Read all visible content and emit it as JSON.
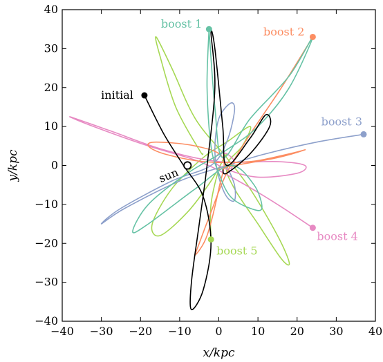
{
  "chart_data": {
    "type": "line",
    "xlabel": "x/kpc",
    "ylabel": "y/kpc",
    "xlim": [
      -40,
      40
    ],
    "ylim": [
      -40,
      40
    ],
    "xticks": [
      -40,
      -30,
      -20,
      -10,
      0,
      10,
      20,
      30,
      40
    ],
    "yticks": [
      -40,
      -30,
      -20,
      -10,
      0,
      10,
      20,
      30,
      40
    ],
    "xtick_labels": [
      "−40",
      "−30",
      "−20",
      "−10",
      "0",
      "10",
      "20",
      "30",
      "40"
    ],
    "ytick_labels": [
      "−40",
      "−30",
      "−20",
      "−10",
      "0",
      "10",
      "20",
      "30",
      "40"
    ],
    "grid": false,
    "series": [
      {
        "name": "initial",
        "color": "#000000",
        "marker": [
          -19,
          18
        ],
        "points": [
          [
            -19,
            18
          ],
          [
            -14,
            8
          ],
          [
            -9,
            0
          ],
          [
            -4,
            -8
          ],
          [
            -2,
            -20
          ],
          [
            -4,
            -32
          ],
          [
            -7,
            -37
          ],
          [
            -7,
            -30
          ],
          [
            -5,
            -15
          ],
          [
            -3,
            0
          ],
          [
            -1,
            20
          ],
          [
            -2,
            34
          ],
          [
            -1,
            30
          ],
          [
            1,
            10
          ],
          [
            2,
            0
          ],
          [
            8,
            7
          ],
          [
            12,
            13
          ],
          [
            13,
            10
          ],
          [
            8,
            3
          ],
          [
            2,
            -2
          ],
          [
            1,
            -1
          ]
        ]
      },
      {
        "name": "boost 1",
        "color": "#66c2a5",
        "marker": [
          -2.5,
          35
        ],
        "points": [
          [
            -2.5,
            35
          ],
          [
            -3,
            20
          ],
          [
            -2,
            5
          ],
          [
            0,
            -2
          ],
          [
            3,
            -8
          ],
          [
            8,
            -11
          ],
          [
            11,
            -11
          ],
          [
            9,
            -5
          ],
          [
            3,
            0
          ],
          [
            -6,
            -6
          ],
          [
            -18,
            -15
          ],
          [
            -22,
            -17
          ],
          [
            -18,
            -10
          ],
          [
            -8,
            -2
          ],
          [
            2,
            4
          ],
          [
            10,
            10
          ],
          [
            18,
            20
          ],
          [
            24,
            33
          ],
          [
            18,
            23
          ],
          [
            8,
            12
          ],
          [
            1,
            2
          ],
          [
            -1,
            15
          ],
          [
            -2.5,
            35
          ]
        ]
      },
      {
        "name": "boost 2",
        "color": "#fc8d62",
        "marker": [
          24,
          33
        ],
        "points": [
          [
            24,
            33
          ],
          [
            16,
            20
          ],
          [
            8,
            8
          ],
          [
            2,
            -2
          ],
          [
            -2,
            -12
          ],
          [
            -5,
            -20
          ],
          [
            -6,
            -23
          ],
          [
            -3,
            -18
          ],
          [
            0,
            -6
          ],
          [
            1,
            2
          ],
          [
            -6,
            5
          ],
          [
            -16,
            6
          ],
          [
            -18,
            5
          ],
          [
            -14,
            3
          ],
          [
            -4,
            1
          ],
          [
            8,
            1
          ],
          [
            18,
            3
          ],
          [
            22,
            4
          ],
          [
            15,
            2
          ],
          [
            4,
            0
          ],
          [
            0,
            -1
          ]
        ]
      },
      {
        "name": "boost 3",
        "color": "#8da0cb",
        "marker": [
          37,
          8
        ],
        "points": [
          [
            37,
            8
          ],
          [
            25,
            6
          ],
          [
            12,
            3
          ],
          [
            2,
            0
          ],
          [
            -10,
            -4
          ],
          [
            -24,
            -11
          ],
          [
            -30,
            -15
          ],
          [
            -25,
            -11
          ],
          [
            -12,
            -4
          ],
          [
            -2,
            0
          ],
          [
            2,
            6
          ],
          [
            4,
            14
          ],
          [
            3,
            16
          ],
          [
            0,
            12
          ],
          [
            -1,
            4
          ],
          [
            0,
            -3
          ],
          [
            2,
            -8
          ],
          [
            4,
            -9
          ],
          [
            4,
            -5
          ],
          [
            2,
            0
          ]
        ]
      },
      {
        "name": "boost 4",
        "color": "#e78ac3",
        "marker": [
          24,
          -16
        ],
        "points": [
          [
            24,
            -16
          ],
          [
            15,
            -10
          ],
          [
            5,
            -4
          ],
          [
            -5,
            1
          ],
          [
            -18,
            5
          ],
          [
            -32,
            10
          ],
          [
            -38,
            12.5
          ],
          [
            -28,
            9
          ],
          [
            -14,
            4
          ],
          [
            0,
            1
          ],
          [
            15,
            1
          ],
          [
            22,
            0
          ],
          [
            20,
            -2
          ],
          [
            10,
            -3
          ],
          [
            2,
            -1
          ],
          [
            -1,
            1
          ],
          [
            0,
            3
          ],
          [
            2,
            3
          ],
          [
            4,
            1
          ],
          [
            3,
            -1
          ]
        ]
      },
      {
        "name": "boost 5",
        "color": "#a6d854",
        "marker": [
          -2,
          -19
        ],
        "points": [
          [
            -2,
            -19
          ],
          [
            -2,
            -10
          ],
          [
            0,
            -1
          ],
          [
            2,
            3
          ],
          [
            -2,
            -4
          ],
          [
            -8,
            -12
          ],
          [
            -15,
            -18
          ],
          [
            -17,
            -15
          ],
          [
            -12,
            -6
          ],
          [
            -4,
            2
          ],
          [
            2,
            6
          ],
          [
            8,
            10
          ],
          [
            6,
            5
          ],
          [
            2,
            0
          ],
          [
            4,
            -6
          ],
          [
            10,
            -15
          ],
          [
            16,
            -24
          ],
          [
            18,
            -25
          ],
          [
            15,
            -18
          ],
          [
            8,
            -6
          ],
          [
            2,
            2
          ],
          [
            -6,
            12
          ],
          [
            -12,
            25
          ],
          [
            -16,
            33
          ],
          [
            -15,
            28
          ],
          [
            -11,
            15
          ],
          [
            -5,
            4
          ],
          [
            -4,
            3
          ]
        ]
      }
    ],
    "sun": {
      "label": "sun",
      "position": [
        -8,
        0
      ]
    },
    "annotations": [
      {
        "text": "initial",
        "color": "#000000",
        "at": [
          -19,
          18
        ],
        "anchor": "end",
        "dx": -16,
        "dy": 5
      },
      {
        "text": "boost 1",
        "color": "#66c2a5",
        "at": [
          -2.5,
          35
        ],
        "anchor": "end",
        "dx": -10,
        "dy": -2
      },
      {
        "text": "boost 2",
        "color": "#fc8d62",
        "at": [
          24,
          33
        ],
        "anchor": "end",
        "dx": -12,
        "dy": -2
      },
      {
        "text": "boost 3",
        "color": "#8da0cb",
        "at": [
          37,
          8
        ],
        "anchor": "end",
        "dx": -2,
        "dy": -13
      },
      {
        "text": "boost 4",
        "color": "#e78ac3",
        "at": [
          24,
          -16
        ],
        "anchor": "start",
        "dx": 6,
        "dy": 18
      },
      {
        "text": "boost 5",
        "color": "#a6d854",
        "at": [
          -2,
          -19
        ],
        "anchor": "start",
        "dx": 8,
        "dy": 22
      }
    ]
  }
}
